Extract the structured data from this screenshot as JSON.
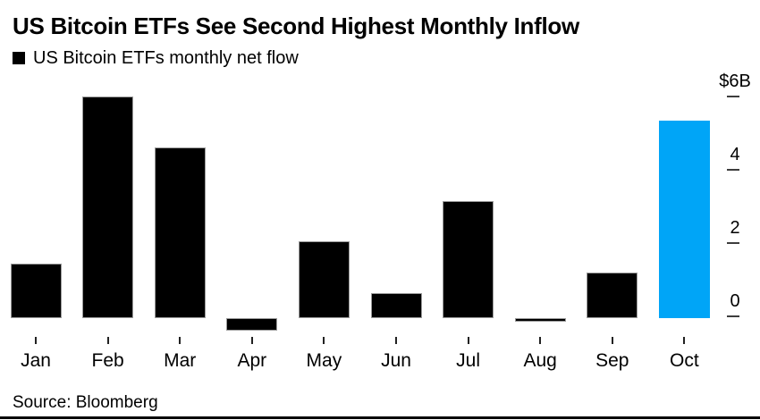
{
  "header": {
    "title": "US Bitcoin ETFs See Second Highest Monthly Inflow"
  },
  "legend": {
    "label": "US Bitcoin ETFs monthly net flow",
    "marker_color": "#000000"
  },
  "chart_data": {
    "type": "bar",
    "title": "US Bitcoin ETFs See Second Highest Monthly Inflow",
    "series_name": "US Bitcoin ETFs monthly net flow",
    "categories": [
      "Jan",
      "Feb",
      "Mar",
      "Apr",
      "May",
      "Jun",
      "Jul",
      "Aug",
      "Sep",
      "Oct"
    ],
    "values": [
      1.5,
      6.05,
      4.65,
      -0.35,
      2.1,
      0.68,
      3.2,
      -0.1,
      1.25,
      5.4
    ],
    "highlight_index": 9,
    "highlight_category": "Oct",
    "xlabel": "",
    "ylabel": "",
    "y_axis": {
      "side": "right",
      "range": [
        -0.6,
        6.4
      ],
      "ticks": [
        {
          "value": 6,
          "label": "$6B"
        },
        {
          "value": 4,
          "label": "4"
        },
        {
          "value": 2,
          "label": "2"
        },
        {
          "value": 0,
          "label": "0"
        }
      ]
    },
    "grid": false,
    "legend_position": "top-left"
  },
  "colors": {
    "bar": "#000000",
    "highlight": "#00a5f7",
    "bar_outline": "#9b9b9b",
    "axis_text": "#000000",
    "tick": "#3d3d3d"
  },
  "footer": {
    "source": "Source: Bloomberg"
  }
}
